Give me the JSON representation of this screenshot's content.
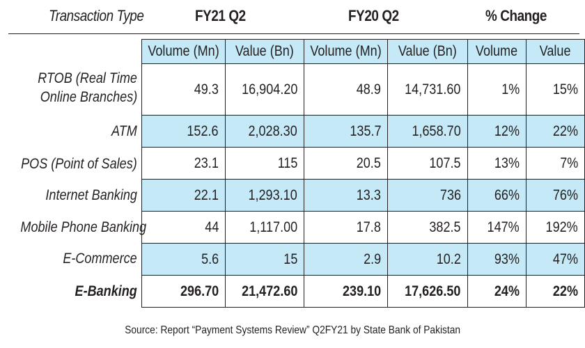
{
  "header": {
    "transaction_type": "Transaction Type",
    "fy21": "FY21 Q2",
    "fy20": "FY20 Q2",
    "change": "% Change"
  },
  "subheaders": [
    "Volume (Mn)",
    "Value (Bn)",
    "Volume (Mn)",
    "Value (Bn)",
    "Volume",
    "Value"
  ],
  "rows": [
    {
      "label_line1": "RTOB (Real Time",
      "label_line2": "Online Branches)",
      "values": [
        "49.3",
        "16,904.20",
        "48.9",
        "14,731.60",
        "1%",
        "15%"
      ]
    },
    {
      "label_line1": "ATM",
      "values": [
        "152.6",
        "2,028.30",
        "135.7",
        "1,658.70",
        "12%",
        "22%"
      ]
    },
    {
      "label_line1": "POS (Point of Sales)",
      "values": [
        "23.1",
        "115",
        "20.5",
        "107.5",
        "13%",
        "7%"
      ]
    },
    {
      "label_line1": "Internet Banking",
      "values": [
        "22.1",
        "1,293.10",
        "13.3",
        "736",
        "66%",
        "76%"
      ]
    },
    {
      "label_line1": "Mobile Phone Banking",
      "values": [
        "44",
        "1,117.00",
        "17.8",
        "382.5",
        "147%",
        "192%"
      ]
    },
    {
      "label_line1": "E-Commerce",
      "values": [
        "5.6",
        "15",
        "2.9",
        "10.2",
        "93%",
        "47%"
      ]
    },
    {
      "label_line1": "E-Banking",
      "values": [
        "296.70",
        "21,472.60",
        "239.10",
        "17,626.50",
        "24%",
        "22%"
      ]
    }
  ],
  "source": "Source: Report “Payment Systems Review” Q2FY21 by State Bank of Pakistan",
  "colors": {
    "highlight_rows": "#c5e9f7",
    "text": "#231f20",
    "lines": "#231f20"
  }
}
